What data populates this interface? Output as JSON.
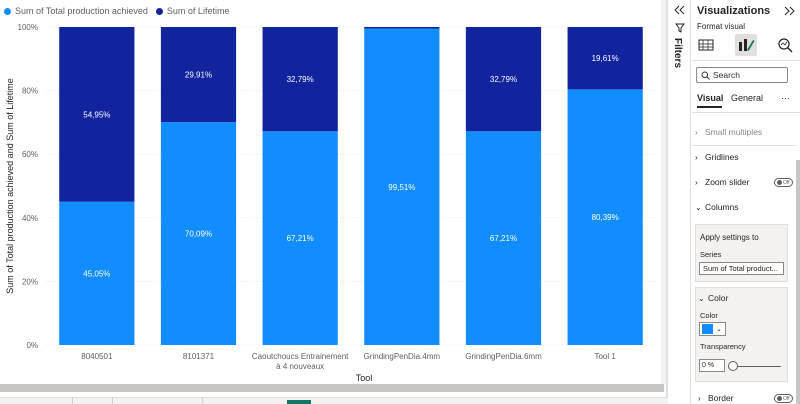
{
  "legend": [
    {
      "label": "Sum of Total production achieved",
      "color": "#118DFF"
    },
    {
      "label": "Sum of Lifetime",
      "color": "#12239E"
    }
  ],
  "chart_data": {
    "type": "bar",
    "stacked": "100%",
    "categories": [
      "8040501",
      "8101371",
      "Caoutchoucs Entrainement|à 4 nouveaux",
      "GrindingPenDia.4mm",
      "GrindingPenDia.6mm",
      "Tool 1"
    ],
    "series": [
      {
        "name": "Sum of Total production achieved",
        "color": "#118DFF",
        "values": [
          45.05,
          70.09,
          67.21,
          99.51,
          67.21,
          80.39
        ],
        "labels": [
          "45,05%",
          "70,09%",
          "67,21%",
          "99,51%",
          "67,21%",
          "80,39%"
        ]
      },
      {
        "name": "Sum of Lifetime",
        "color": "#12239E",
        "values": [
          54.95,
          29.91,
          32.79,
          0.49,
          32.79,
          19.61
        ],
        "labels": [
          "54,95%",
          "29,91%",
          "32,79%",
          "",
          "32,79%",
          "19,61%"
        ]
      }
    ],
    "xlabel": "Tool",
    "ylabel": "Sum of Total production achieved and Sum of Lifetime",
    "yticks": [
      "0%",
      "20%",
      "40%",
      "60%",
      "80%",
      "100%"
    ],
    "ylim": [
      0,
      100
    ],
    "grid": true,
    "legend_position": "top-left"
  },
  "filters": {
    "label": "Filters"
  },
  "pane": {
    "title": "Visualizations",
    "subtitle": "Format visual",
    "search_placeholder": "Search",
    "tab_visual": "Visual",
    "tab_general": "General",
    "tab_more": "···",
    "sections": {
      "small_multiples": "Small multiples",
      "gridlines": "Gridlines",
      "zoom_slider": "Zoom slider",
      "columns": "Columns",
      "color": "Color",
      "border": "Border"
    },
    "toggle_off": "Off",
    "apply_settings": "Apply settings to",
    "series_label": "Series",
    "series_value": "Sum of Total product...",
    "color_label": "Color",
    "color_value": "#118DFF",
    "transparency_label": "Transparency",
    "transparency_value": "0 %"
  }
}
